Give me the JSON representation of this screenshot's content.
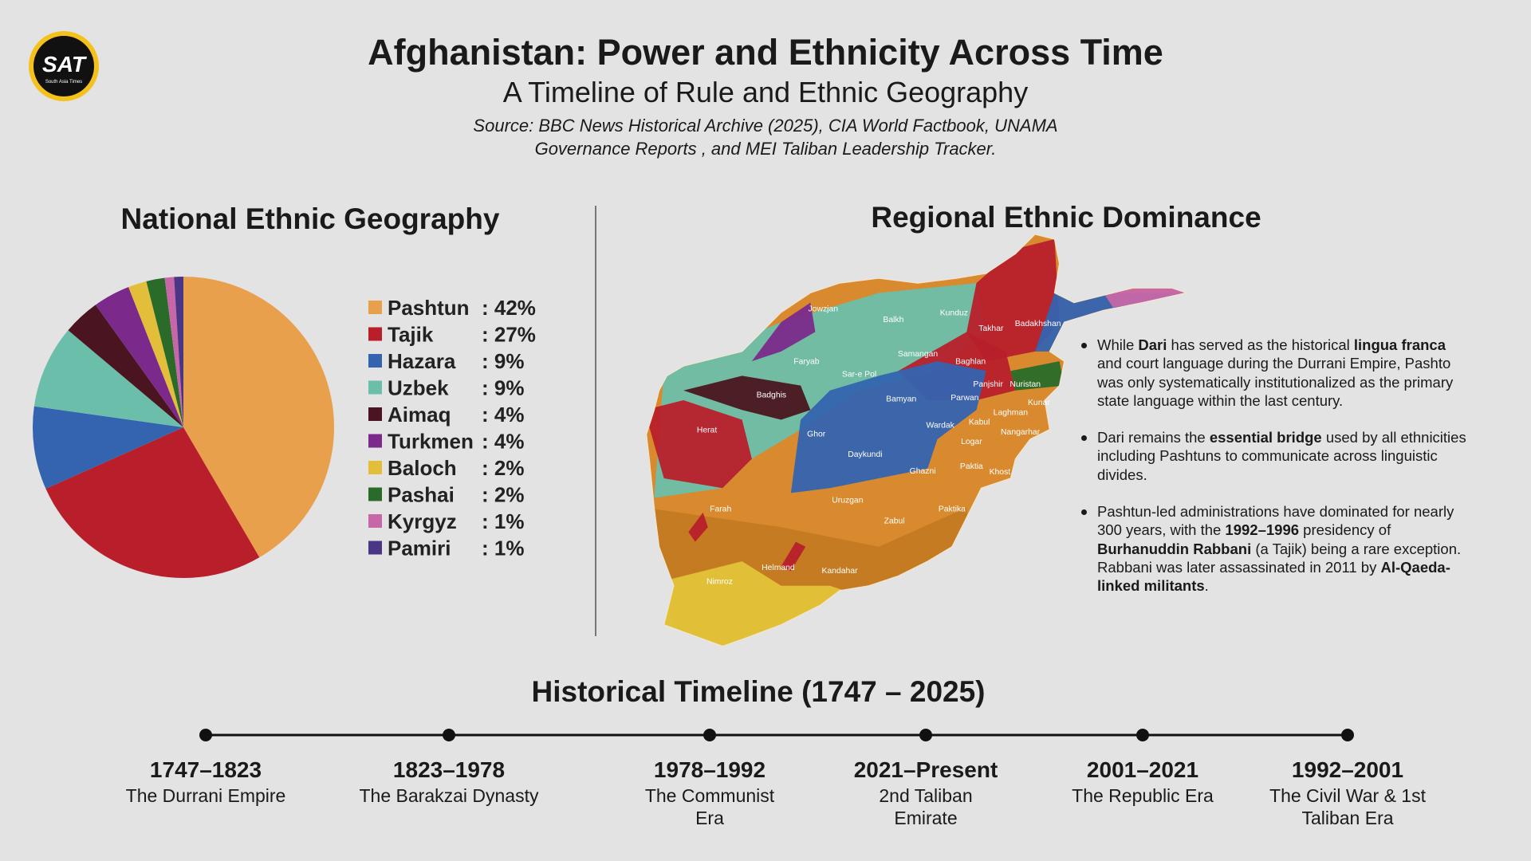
{
  "header": {
    "logo": {
      "mark": "SAT",
      "name": "South Asia Times"
    },
    "title": "Afghanistan: Power and Ethnicity Across Time",
    "subtitle": "A Timeline of Rule and Ethnic Geography",
    "source": [
      "Source: BBC News Historical Archive (2025), CIA World Factbook, UNAMA",
      "Governance Reports , and MEI Taliban Leadership Tracker."
    ]
  },
  "chart_data": {
    "type": "pie",
    "title": "National Ethnic Geography",
    "categories": [
      "Pashtun",
      "Tajik",
      "Hazara",
      "Uzbek",
      "Aimaq",
      "Turkmen",
      "Baloch",
      "Pashai",
      "Kyrgyz",
      "Pamiri"
    ],
    "values": [
      42,
      27,
      9,
      9,
      4,
      4,
      2,
      2,
      1,
      1
    ],
    "value_labels": [
      ": 42%",
      ": 27%",
      ": 9%",
      ": 9%",
      ": 4%",
      ": 4%",
      ": 2%",
      ": 2%",
      ": 1%",
      ": 1%"
    ],
    "colors": [
      "#e8a04c",
      "#b81f2b",
      "#3464b0",
      "#6bbfaa",
      "#4a1520",
      "#7b2a8c",
      "#e2be3a",
      "#2a6b2a",
      "#c767a8",
      "#4b3585"
    ]
  },
  "map": {
    "title": "Regional Ethnic Dominance",
    "regions": [
      "Jowzjan",
      "Balkh",
      "Kunduz",
      "Takhar",
      "Badakhshan",
      "Faryab",
      "Samangan",
      "Baghlan",
      "Sar-e Pol",
      "Badghis",
      "Bamyan",
      "Panjshir",
      "Nuristan",
      "Parwan",
      "Kunar",
      "Kabul",
      "Herat",
      "Ghor",
      "Wardak",
      "Laghman",
      "Nangarhar",
      "Logar",
      "Daykundi",
      "Ghazni",
      "Paktia",
      "Khost",
      "Farah",
      "Uruzgan",
      "Paktika",
      "Zabul",
      "Helmand",
      "Kandahar",
      "Nimroz"
    ]
  },
  "notes": [
    [
      "While ",
      "Dari",
      " has served as the historical ",
      "lingua franca",
      " and court language during  the Durrani Empire, Pashto was only systematically institutionalized as the primary state language within the last century."
    ],
    [
      "Dari remains the ",
      "essential bridge",
      " used by all ethnicities including Pashtuns to communicate across linguistic divides."
    ],
    [
      "Pashtun-led administrations have dominated for nearly 300 years, with the ",
      "1992–1996",
      " presidency of ",
      "Burhanuddin Rabbani",
      " (a Tajik) being a rare exception. Rabbani was later assassinated in 2011 by ",
      "Al-Qaeda-linked militants",
      "."
    ]
  ],
  "timeline": {
    "title": "Historical Timeline (1747 – 2025)",
    "events": [
      {
        "period": "1747–1823",
        "label": "The Durrani Empire"
      },
      {
        "period": "1823–1978",
        "label": "The Barakzai Dynasty"
      },
      {
        "period": "1978–1992",
        "label": "The Communist Era"
      },
      {
        "period": "2021–Present",
        "label": "2nd Taliban Emirate"
      },
      {
        "period": "2001–2021",
        "label": "The Republic Era"
      },
      {
        "period": "1992–2001",
        "label": "The Civil War & 1st Taliban Era"
      }
    ]
  }
}
